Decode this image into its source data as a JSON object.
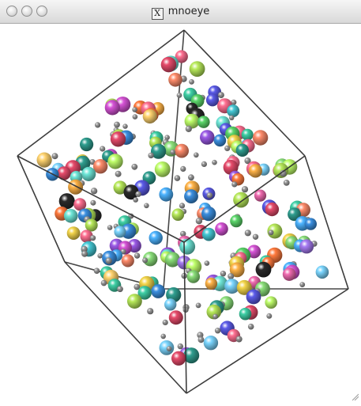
{
  "window": {
    "title": "mnoeye",
    "title_icon_label": "X"
  },
  "scene": {
    "background": "#ffffff",
    "box_edge_color": "#333333",
    "small_sphere_color": "#9a9a9a",
    "palette": [
      "#e64b6b",
      "#ff7a3d",
      "#f3d54a",
      "#b8ea5a",
      "#5bd66a",
      "#3fd0a6",
      "#45c9d6",
      "#3b8fe0",
      "#5b5be8",
      "#9b59e6",
      "#d653d6",
      "#f06ab0",
      "#2a2a2a",
      "#7bd6ff",
      "#ffb347",
      "#8be07a",
      "#c0ff6b",
      "#ff6f91",
      "#6ee7d8",
      "#a77bf3",
      "#ffd36e",
      "#4cb3ff",
      "#ff8c6b",
      "#2f9e8f"
    ]
  }
}
